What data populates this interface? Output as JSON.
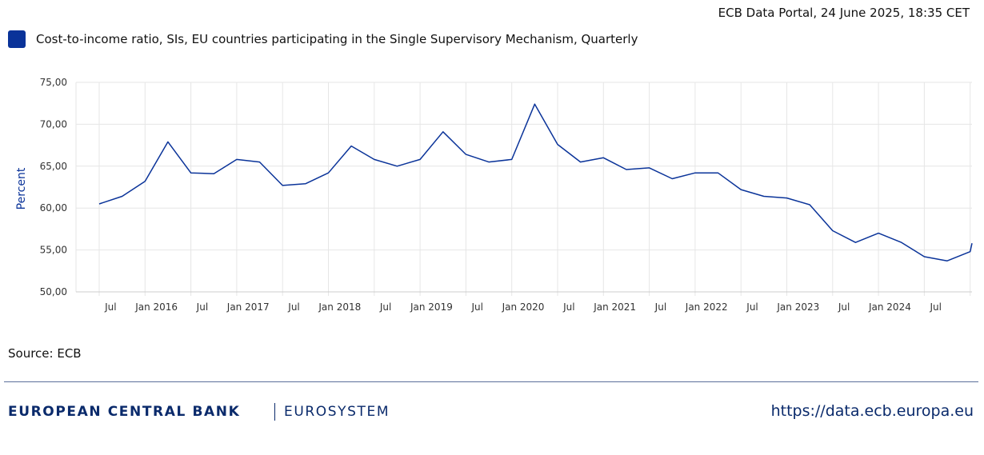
{
  "header": {
    "timestamp": "ECB Data Portal, 24 June 2025, 18:35 CET"
  },
  "colors": {
    "series": "#0a3399",
    "legend_swatch": "#0a3399",
    "grid": "#e6e6e6",
    "axis_title": "#0a3399",
    "footer_text": "#0a2a6b"
  },
  "legend": {
    "label": "Cost-to-income ratio, SIs, EU countries participating in the Single Supervisory Mechanism, Quarterly"
  },
  "chart_data": {
    "type": "line",
    "ylabel": "Percent",
    "ylim": [
      50,
      75
    ],
    "y_ticks": [
      "75,00",
      "70,00",
      "65,00",
      "60,00",
      "55,00",
      "50,00"
    ],
    "y_tick_values": [
      75,
      70,
      65,
      60,
      55,
      50
    ],
    "x_tick_labels": [
      "Jul",
      "Jan 2016",
      "Jul",
      "Jan 2017",
      "Jul",
      "Jan 2018",
      "Jul",
      "Jan 2019",
      "Jul",
      "Jan 2020",
      "Jul",
      "Jan 2021",
      "Jul",
      "Jan 2022",
      "Jul",
      "Jan 2023",
      "Jul",
      "Jan 2024",
      "Jul"
    ],
    "grid": true,
    "series": [
      {
        "x": [
          "2015-Q1",
          "2015-Q2",
          "2015-Q3",
          "2015-Q4",
          "2016-Q1",
          "2016-Q2",
          "2016-Q3",
          "2016-Q4",
          "2017-Q1",
          "2017-Q2",
          "2017-Q3",
          "2017-Q4",
          "2018-Q1",
          "2018-Q2",
          "2018-Q3",
          "2018-Q4",
          "2019-Q1",
          "2019-Q2",
          "2019-Q3",
          "2019-Q4",
          "2020-Q1",
          "2020-Q2",
          "2020-Q3",
          "2020-Q4",
          "2021-Q1",
          "2021-Q2",
          "2021-Q3",
          "2021-Q4",
          "2022-Q1",
          "2022-Q2",
          "2022-Q3",
          "2022-Q4",
          "2023-Q1",
          "2023-Q2",
          "2023-Q3",
          "2023-Q4",
          "2024-Q1",
          "2024-Q2",
          "2024-Q3",
          "2024-Q4"
        ],
        "values": [
          60.5,
          61.4,
          63.2,
          67.9,
          64.2,
          64.1,
          65.8,
          65.5,
          62.7,
          62.9,
          64.2,
          67.4,
          65.8,
          65.0,
          65.8,
          69.1,
          66.4,
          65.5,
          65.8,
          72.4,
          67.6,
          65.5,
          66.0,
          64.6,
          64.8,
          63.5,
          64.2,
          64.2,
          62.2,
          61.4,
          61.2,
          60.4,
          57.3,
          55.9,
          57.0,
          55.9,
          54.2,
          53.7,
          54.8,
          55.8
        ]
      }
    ]
  },
  "source": {
    "text": "Source: ECB"
  },
  "footer": {
    "bank": "EUROPEAN CENTRAL BANK",
    "eurosystem": "EUROSYSTEM",
    "url": "https://data.ecb.europa.eu"
  }
}
